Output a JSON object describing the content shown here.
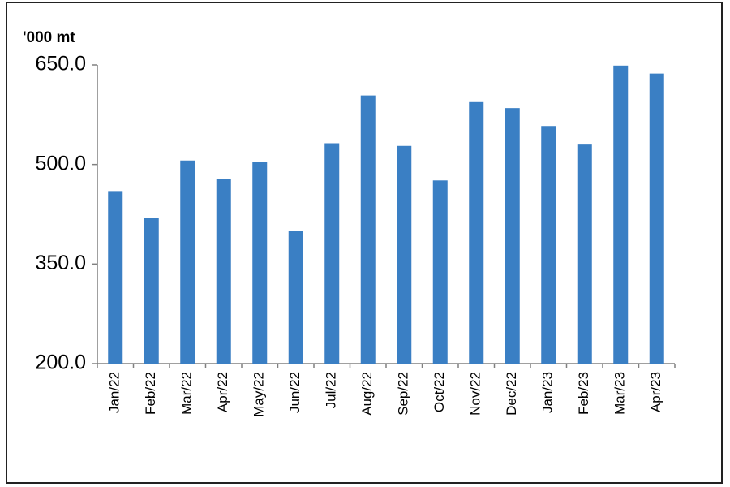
{
  "chart_data": {
    "type": "bar",
    "unit_label": "'000 mt",
    "categories": [
      "Jan/22",
      "Feb/22",
      "Mar/22",
      "Apr/22",
      "May/22",
      "Jun/22",
      "Jul/22",
      "Aug/22",
      "Sep/22",
      "Oct/22",
      "Nov/22",
      "Dec/22",
      "Jan/23",
      "Feb/23",
      "Mar/23",
      "Apr/23"
    ],
    "values": [
      460,
      420,
      506,
      478,
      504,
      400,
      532,
      604,
      528,
      476,
      594,
      585,
      558,
      530,
      649,
      637
    ],
    "color": "#3a7fc4",
    "ylim": [
      200,
      650
    ],
    "yticks": [
      {
        "value": 200,
        "label": "200.0"
      },
      {
        "value": 350,
        "label": "350.0"
      },
      {
        "value": 500,
        "label": "500.0"
      },
      {
        "value": 650,
        "label": "650.0"
      }
    ],
    "grid": false
  }
}
